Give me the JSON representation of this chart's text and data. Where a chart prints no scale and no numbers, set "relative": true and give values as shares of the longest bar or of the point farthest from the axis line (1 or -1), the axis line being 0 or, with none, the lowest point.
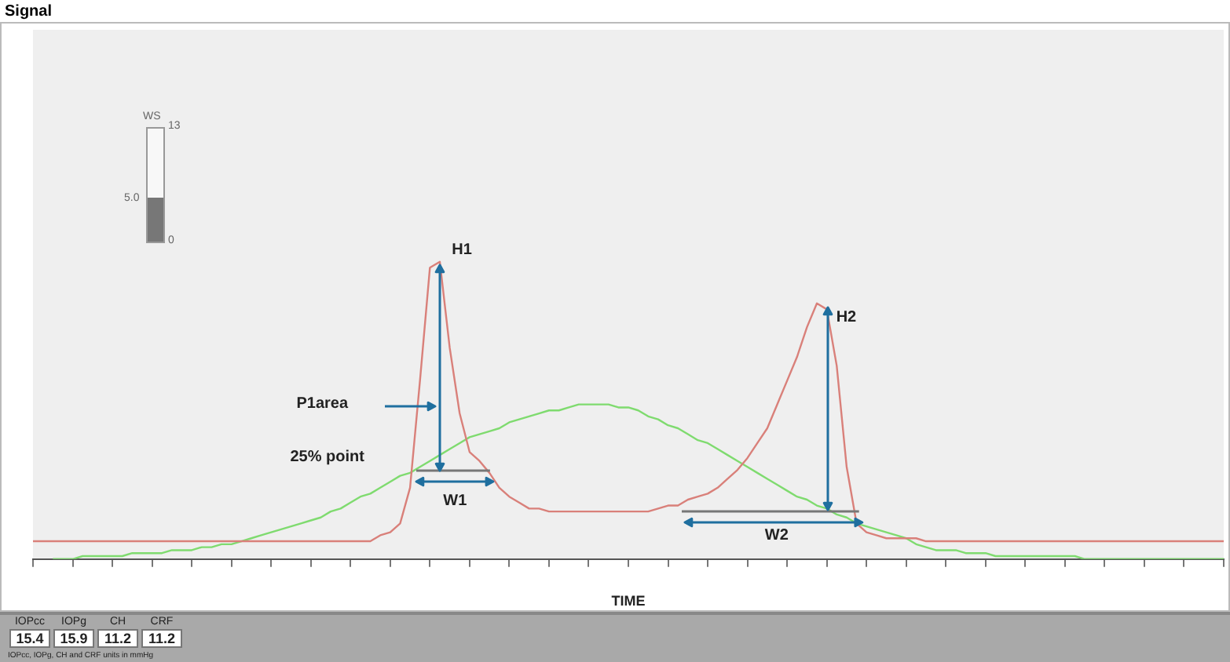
{
  "chart_data": {
    "type": "line",
    "relative": true,
    "xlabel": "TIME",
    "marker": "none",
    "line_style": "solid",
    "categories": [
      null,
      null,
      null,
      null,
      null,
      null,
      null,
      null,
      null,
      null,
      null,
      null,
      null,
      null,
      null,
      null,
      null,
      null,
      null,
      null,
      null,
      null,
      null,
      null,
      null,
      null,
      null,
      null,
      null,
      null,
      null,
      null,
      null,
      null,
      null,
      null,
      null,
      null,
      null,
      null,
      null,
      null,
      null,
      null,
      null,
      null,
      null,
      null,
      null,
      null,
      null,
      null,
      null,
      null,
      null,
      null,
      null,
      null,
      null,
      null,
      null,
      null,
      null,
      null,
      null,
      null,
      null,
      null,
      null,
      null,
      null,
      null,
      null,
      null,
      null,
      null,
      null,
      null,
      null,
      null,
      null,
      null,
      null,
      null,
      null,
      null,
      null,
      null,
      null,
      null,
      null,
      null,
      null,
      null,
      null,
      null,
      null,
      null,
      null,
      null,
      null,
      null,
      null,
      null,
      null,
      null,
      null,
      null,
      null,
      null,
      null,
      null,
      null,
      null,
      null,
      null,
      null,
      null,
      null,
      null,
      null
    ],
    "series": [
      {
        "color": "#d9807a",
        "values": [
          0.06,
          0.06,
          0.06,
          0.06,
          0.06,
          0.06,
          0.06,
          0.06,
          0.06,
          0.06,
          0.06,
          0.06,
          0.06,
          0.06,
          0.06,
          0.06,
          0.06,
          0.06,
          0.06,
          0.06,
          0.06,
          0.06,
          0.06,
          0.06,
          0.06,
          0.06,
          0.06,
          0.06,
          0.06,
          0.06,
          0.06,
          0.06,
          0.06,
          0.06,
          0.06,
          0.08,
          0.09,
          0.12,
          0.24,
          0.6,
          0.98,
          1,
          0.71,
          0.49,
          0.36,
          0.33,
          0.29,
          0.24,
          0.21,
          0.19,
          0.17,
          0.17,
          0.16,
          0.16,
          0.16,
          0.16,
          0.16,
          0.16,
          0.16,
          0.16,
          0.16,
          0.16,
          0.16,
          0.17,
          0.18,
          0.18,
          0.2,
          0.21,
          0.22,
          0.24,
          0.27,
          0.3,
          0.34,
          0.39,
          0.44,
          0.52,
          0.6,
          0.68,
          0.78,
          0.86,
          0.84,
          0.65,
          0.31,
          0.12,
          0.09,
          0.08,
          0.07,
          0.07,
          0.07,
          0.07,
          0.06,
          0.06,
          0.06,
          0.06,
          0.06,
          0.06,
          0.06,
          0.06,
          0.06,
          0.06,
          0.06,
          0.06,
          0.06,
          0.06,
          0.06,
          0.06,
          0.06,
          0.06,
          0.06,
          0.06,
          0.06,
          0.06,
          0.06,
          0.06,
          0.06,
          0.06,
          0.06,
          0.06,
          0.06,
          0.06,
          0.06
        ]
      },
      {
        "color": "#7fdb6f",
        "values": [
          null,
          null,
          0,
          0,
          0,
          0.01,
          0.01,
          0.01,
          0.01,
          0.01,
          0.02,
          0.02,
          0.02,
          0.02,
          0.03,
          0.03,
          0.03,
          0.04,
          0.04,
          0.05,
          0.05,
          0.06,
          0.07,
          0.08,
          0.09,
          0.1,
          0.11,
          0.12,
          0.13,
          0.14,
          0.16,
          0.17,
          0.19,
          0.21,
          0.22,
          0.24,
          0.26,
          0.28,
          0.29,
          0.31,
          0.33,
          0.35,
          0.37,
          0.39,
          0.41,
          0.42,
          0.43,
          0.44,
          0.46,
          0.47,
          0.48,
          0.49,
          0.5,
          0.5,
          0.51,
          0.52,
          0.52,
          0.52,
          0.52,
          0.51,
          0.51,
          0.5,
          0.48,
          0.47,
          0.45,
          0.44,
          0.42,
          0.4,
          0.39,
          0.37,
          0.35,
          0.33,
          0.31,
          0.29,
          0.27,
          0.25,
          0.23,
          0.21,
          0.2,
          0.18,
          0.17,
          0.15,
          0.14,
          0.12,
          0.11,
          0.1,
          0.09,
          0.08,
          0.07,
          0.05,
          0.04,
          0.03,
          0.03,
          0.03,
          0.02,
          0.02,
          0.02,
          0.01,
          0.01,
          0.01,
          0.01,
          0.01,
          0.01,
          0.01,
          0.01,
          0.01,
          0,
          0,
          0,
          0,
          0,
          0,
          0,
          0,
          0,
          0,
          0,
          0,
          0,
          0,
          0
        ]
      }
    ],
    "annotations": [
      "H1",
      "P1area",
      "25% point",
      "W1",
      "H2",
      "W2",
      "WS",
      "13",
      "5.0",
      "0",
      "IOPcc",
      "15.4",
      "IOPg",
      "15.9",
      "CH",
      "11.2",
      "CRF",
      "11.2",
      "IOPcc, IOPg, CH and CRF units in mmHg",
      "Signal"
    ]
  }
}
